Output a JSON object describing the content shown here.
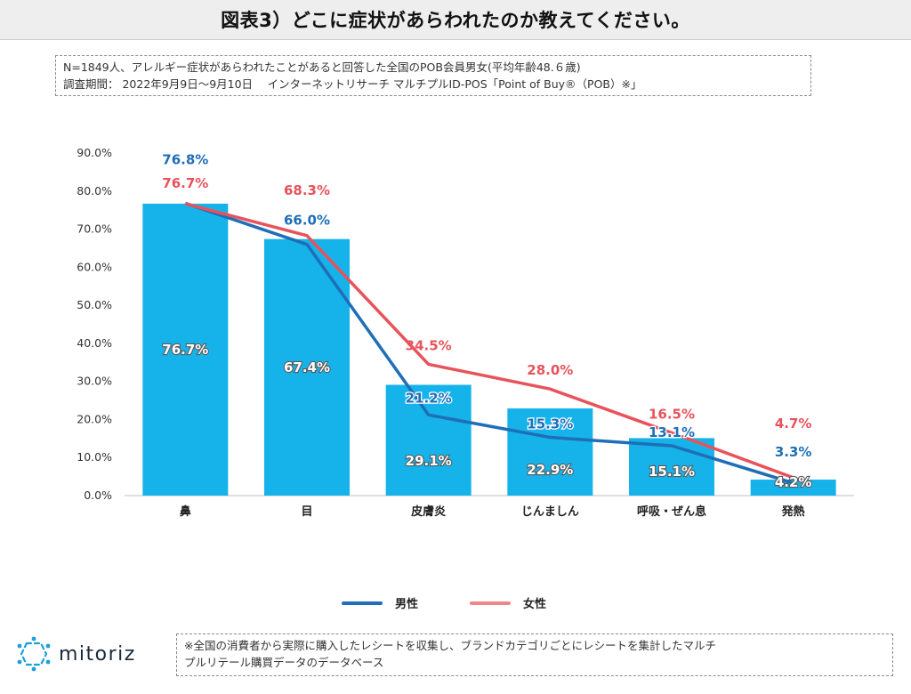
{
  "title": "図表3）どこに症状があらわれたのか教えてください。",
  "notes": {
    "line1": "N=1849人、アレルギー症状があらわれたことがあると回答した全国のPOB会員男女(平均年齢48.６歳)",
    "line2": "調査期間： 2022年9月9日～9月10日　 インターネットリサーチ マルチプルID-POS「Point of Buy®（POB）※」"
  },
  "chart_data": {
    "type": "bar",
    "categories": [
      "鼻",
      "目",
      "皮膚炎",
      "じんましん",
      "呼吸・ぜん息",
      "発熱"
    ],
    "ylim": [
      0,
      90
    ],
    "yticks": [
      "0.0%",
      "10.0%",
      "20.0%",
      "30.0%",
      "40.0%",
      "50.0%",
      "60.0%",
      "70.0%",
      "80.0%",
      "90.0%"
    ],
    "grid": false,
    "legend_position": "bottom",
    "bar_series": {
      "values": [
        76.7,
        67.4,
        29.1,
        22.9,
        15.1,
        4.2
      ],
      "labels": [
        "76.7%",
        "67.4%",
        "29.1%",
        "22.9%",
        "15.1%",
        "4.2%"
      ],
      "color": "#16b3ea"
    },
    "series": [
      {
        "name": "男性",
        "type": "line",
        "color": "#1f6eb7",
        "values": [
          76.8,
          66.0,
          21.2,
          15.3,
          13.1,
          3.3
        ],
        "labels": [
          "76.8%",
          "66.0%",
          "21.2%",
          "15.3%",
          "13.1%",
          "3.3%"
        ]
      },
      {
        "name": "女性",
        "type": "line",
        "color": "#e8535b",
        "values": [
          76.7,
          68.3,
          34.5,
          28.0,
          16.5,
          4.7
        ],
        "labels": [
          "76.7%",
          "68.3%",
          "34.5%",
          "28.0%",
          "16.5%",
          "4.7%"
        ]
      }
    ]
  },
  "legend": {
    "male_label": "男性",
    "male_color": "#1f6eb7",
    "female_label": "女性",
    "female_color": "#f0868a"
  },
  "logo": {
    "text": "mitoriz",
    "icon": "mitoriz-logo-icon",
    "color": "#1a9fd8"
  },
  "footnote": {
    "line1": "※全国の消費者から実際に購入したレシートを収集し、ブランドカテゴリごとにレシートを集計したマルチ",
    "line2": "プルリテール購買データのデータベース"
  }
}
